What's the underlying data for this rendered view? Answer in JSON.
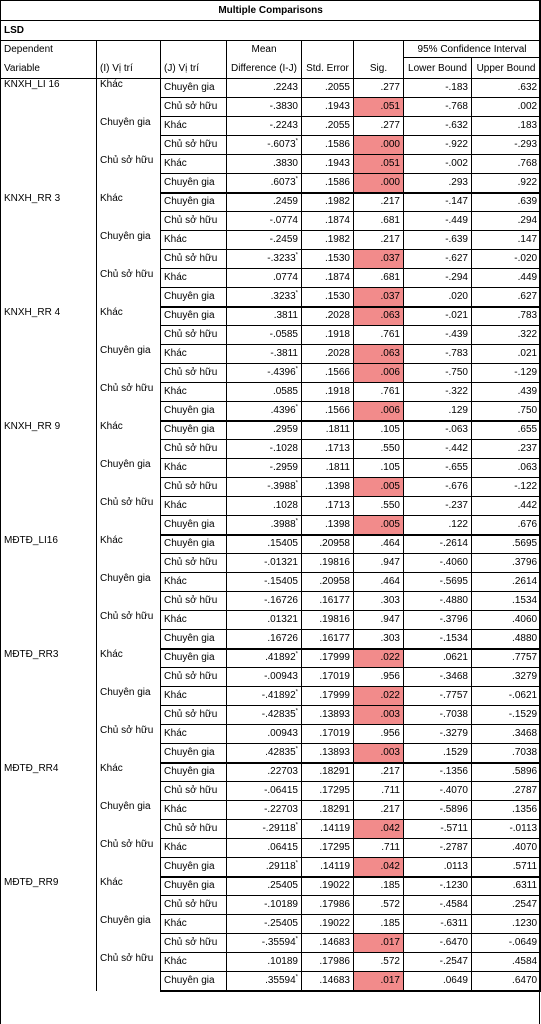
{
  "table": {
    "title": "Multiple Comparisons",
    "method": "LSD",
    "headers": {
      "dependent_line1": "Dependent",
      "dependent_line2": "Variable",
      "i_group": "(I) Vị trí",
      "j_group": "(J) Vị trí",
      "mean_diff_line1": "Mean",
      "mean_diff_line2": "Difference (I-J)",
      "std_error": "Std. Error",
      "sig": "Sig.",
      "ci": "95% Confidence Interval",
      "lower": "Lower Bound",
      "upper": "Upper Bound"
    },
    "blocks": [
      {
        "dependent": "KNXH_LI 16",
        "groups": [
          {
            "i": "Khác",
            "rows": [
              {
                "j": "Chuyên gia",
                "md": ".2243",
                "star": false,
                "se": ".2055",
                "sig": ".277",
                "hi": false,
                "lb": "-.183",
                "ub": ".632"
              },
              {
                "j": "Chủ sở hữu",
                "md": "-.3830",
                "star": false,
                "se": ".1943",
                "sig": ".051",
                "hi": true,
                "lb": "-.768",
                "ub": ".002"
              }
            ]
          },
          {
            "i": "Chuyên gia",
            "rows": [
              {
                "j": "Khác",
                "md": "-.2243",
                "star": false,
                "se": ".2055",
                "sig": ".277",
                "hi": false,
                "lb": "-.632",
                "ub": ".183"
              },
              {
                "j": "Chủ sở hữu",
                "md": "-.6073",
                "star": true,
                "se": ".1586",
                "sig": ".000",
                "hi": true,
                "lb": "-.922",
                "ub": "-.293"
              }
            ]
          },
          {
            "i": "Chủ sở hữu",
            "rows": [
              {
                "j": "Khác",
                "md": ".3830",
                "star": false,
                "se": ".1943",
                "sig": ".051",
                "hi": true,
                "lb": "-.002",
                "ub": ".768"
              },
              {
                "j": "Chuyên gia",
                "md": ".6073",
                "star": true,
                "se": ".1586",
                "sig": ".000",
                "hi": true,
                "lb": ".293",
                "ub": ".922"
              }
            ]
          }
        ]
      },
      {
        "dependent": "KNXH_RR 3",
        "groups": [
          {
            "i": "Khác",
            "rows": [
              {
                "j": "Chuyên gia",
                "md": ".2459",
                "star": false,
                "se": ".1982",
                "sig": ".217",
                "hi": false,
                "lb": "-.147",
                "ub": ".639"
              },
              {
                "j": "Chủ sở hữu",
                "md": "-.0774",
                "star": false,
                "se": ".1874",
                "sig": ".681",
                "hi": false,
                "lb": "-.449",
                "ub": ".294"
              }
            ]
          },
          {
            "i": "Chuyên gia",
            "rows": [
              {
                "j": "Khác",
                "md": "-.2459",
                "star": false,
                "se": ".1982",
                "sig": ".217",
                "hi": false,
                "lb": "-.639",
                "ub": ".147"
              },
              {
                "j": "Chủ sở hữu",
                "md": "-.3233",
                "star": true,
                "se": ".1530",
                "sig": ".037",
                "hi": true,
                "lb": "-.627",
                "ub": "-.020"
              }
            ]
          },
          {
            "i": "Chủ sở hữu",
            "rows": [
              {
                "j": "Khác",
                "md": ".0774",
                "star": false,
                "se": ".1874",
                "sig": ".681",
                "hi": false,
                "lb": "-.294",
                "ub": ".449"
              },
              {
                "j": "Chuyên gia",
                "md": ".3233",
                "star": true,
                "se": ".1530",
                "sig": ".037",
                "hi": true,
                "lb": ".020",
                "ub": ".627"
              }
            ]
          }
        ]
      },
      {
        "dependent": "KNXH_RR 4",
        "groups": [
          {
            "i": "Khác",
            "rows": [
              {
                "j": "Chuyên gia",
                "md": ".3811",
                "star": false,
                "se": ".2028",
                "sig": ".063",
                "hi": true,
                "lb": "-.021",
                "ub": ".783"
              },
              {
                "j": "Chủ sở hữu",
                "md": "-.0585",
                "star": false,
                "se": ".1918",
                "sig": ".761",
                "hi": false,
                "lb": "-.439",
                "ub": ".322"
              }
            ]
          },
          {
            "i": "Chuyên gia",
            "rows": [
              {
                "j": "Khác",
                "md": "-.3811",
                "star": false,
                "se": ".2028",
                "sig": ".063",
                "hi": true,
                "lb": "-.783",
                "ub": ".021"
              },
              {
                "j": "Chủ sở hữu",
                "md": "-.4396",
                "star": true,
                "se": ".1566",
                "sig": ".006",
                "hi": true,
                "lb": "-.750",
                "ub": "-.129"
              }
            ]
          },
          {
            "i": "Chủ sở hữu",
            "rows": [
              {
                "j": "Khác",
                "md": ".0585",
                "star": false,
                "se": ".1918",
                "sig": ".761",
                "hi": false,
                "lb": "-.322",
                "ub": ".439"
              },
              {
                "j": "Chuyên gia",
                "md": ".4396",
                "star": true,
                "se": ".1566",
                "sig": ".006",
                "hi": true,
                "lb": ".129",
                "ub": ".750"
              }
            ]
          }
        ]
      },
      {
        "dependent": "KNXH_RR 9",
        "groups": [
          {
            "i": "Khác",
            "rows": [
              {
                "j": "Chuyên gia",
                "md": ".2959",
                "star": false,
                "se": ".1811",
                "sig": ".105",
                "hi": false,
                "lb": "-.063",
                "ub": ".655"
              },
              {
                "j": "Chủ sở hữu",
                "md": "-.1028",
                "star": false,
                "se": ".1713",
                "sig": ".550",
                "hi": false,
                "lb": "-.442",
                "ub": ".237"
              }
            ]
          },
          {
            "i": "Chuyên gia",
            "rows": [
              {
                "j": "Khác",
                "md": "-.2959",
                "star": false,
                "se": ".1811",
                "sig": ".105",
                "hi": false,
                "lb": "-.655",
                "ub": ".063"
              },
              {
                "j": "Chủ sở hữu",
                "md": "-.3988",
                "star": true,
                "se": ".1398",
                "sig": ".005",
                "hi": true,
                "lb": "-.676",
                "ub": "-.122"
              }
            ]
          },
          {
            "i": "Chủ sở hữu",
            "rows": [
              {
                "j": "Khác",
                "md": ".1028",
                "star": false,
                "se": ".1713",
                "sig": ".550",
                "hi": false,
                "lb": "-.237",
                "ub": ".442"
              },
              {
                "j": "Chuyên gia",
                "md": ".3988",
                "star": true,
                "se": ".1398",
                "sig": ".005",
                "hi": true,
                "lb": ".122",
                "ub": ".676"
              }
            ]
          }
        ]
      },
      {
        "dependent": "MĐTĐ_LI16",
        "groups": [
          {
            "i": "Khác",
            "rows": [
              {
                "j": "Chuyên gia",
                "md": ".15405",
                "star": false,
                "se": ".20958",
                "sig": ".464",
                "hi": false,
                "lb": "-.2614",
                "ub": ".5695"
              },
              {
                "j": "Chủ sở hữu",
                "md": "-.01321",
                "star": false,
                "se": ".19816",
                "sig": ".947",
                "hi": false,
                "lb": "-.4060",
                "ub": ".3796"
              }
            ]
          },
          {
            "i": "Chuyên gia",
            "rows": [
              {
                "j": "Khác",
                "md": "-.15405",
                "star": false,
                "se": ".20958",
                "sig": ".464",
                "hi": false,
                "lb": "-.5695",
                "ub": ".2614"
              },
              {
                "j": "Chủ sở hữu",
                "md": "-.16726",
                "star": false,
                "se": ".16177",
                "sig": ".303",
                "hi": false,
                "lb": "-.4880",
                "ub": ".1534"
              }
            ]
          },
          {
            "i": "Chủ sở hữu",
            "rows": [
              {
                "j": "Khác",
                "md": ".01321",
                "star": false,
                "se": ".19816",
                "sig": ".947",
                "hi": false,
                "lb": "-.3796",
                "ub": ".4060"
              },
              {
                "j": "Chuyên gia",
                "md": ".16726",
                "star": false,
                "se": ".16177",
                "sig": ".303",
                "hi": false,
                "lb": "-.1534",
                "ub": ".4880"
              }
            ]
          }
        ]
      },
      {
        "dependent": "MĐTĐ_RR3",
        "groups": [
          {
            "i": "Khác",
            "rows": [
              {
                "j": "Chuyên gia",
                "md": ".41892",
                "star": true,
                "se": ".17999",
                "sig": ".022",
                "hi": true,
                "lb": ".0621",
                "ub": ".7757"
              },
              {
                "j": "Chủ sở hữu",
                "md": "-.00943",
                "star": false,
                "se": ".17019",
                "sig": ".956",
                "hi": false,
                "lb": "-.3468",
                "ub": ".3279"
              }
            ]
          },
          {
            "i": "Chuyên gia",
            "rows": [
              {
                "j": "Khác",
                "md": "-.41892",
                "star": true,
                "se": ".17999",
                "sig": ".022",
                "hi": true,
                "lb": "-.7757",
                "ub": "-.0621"
              },
              {
                "j": "Chủ sở hữu",
                "md": "-.42835",
                "star": true,
                "se": ".13893",
                "sig": ".003",
                "hi": true,
                "lb": "-.7038",
                "ub": "-.1529"
              }
            ]
          },
          {
            "i": "Chủ sở hữu",
            "rows": [
              {
                "j": "Khác",
                "md": ".00943",
                "star": false,
                "se": ".17019",
                "sig": ".956",
                "hi": false,
                "lb": "-.3279",
                "ub": ".3468"
              },
              {
                "j": "Chuyên gia",
                "md": ".42835",
                "star": true,
                "se": ".13893",
                "sig": ".003",
                "hi": true,
                "lb": ".1529",
                "ub": ".7038"
              }
            ]
          }
        ]
      },
      {
        "dependent": "MĐTĐ_RR4",
        "groups": [
          {
            "i": "Khác",
            "rows": [
              {
                "j": "Chuyên gia",
                "md": ".22703",
                "star": false,
                "se": ".18291",
                "sig": ".217",
                "hi": false,
                "lb": "-.1356",
                "ub": ".5896"
              },
              {
                "j": "Chủ sở hữu",
                "md": "-.06415",
                "star": false,
                "se": ".17295",
                "sig": ".711",
                "hi": false,
                "lb": "-.4070",
                "ub": ".2787"
              }
            ]
          },
          {
            "i": "Chuyên gia",
            "rows": [
              {
                "j": "Khác",
                "md": "-.22703",
                "star": false,
                "se": ".18291",
                "sig": ".217",
                "hi": false,
                "lb": "-.5896",
                "ub": ".1356"
              },
              {
                "j": "Chủ sở hữu",
                "md": "-.29118",
                "star": true,
                "se": ".14119",
                "sig": ".042",
                "hi": true,
                "lb": "-.5711",
                "ub": "-.0113"
              }
            ]
          },
          {
            "i": "Chủ sở hữu",
            "rows": [
              {
                "j": "Khác",
                "md": ".06415",
                "star": false,
                "se": ".17295",
                "sig": ".711",
                "hi": false,
                "lb": "-.2787",
                "ub": ".4070"
              },
              {
                "j": "Chuyên gia",
                "md": ".29118",
                "star": true,
                "se": ".14119",
                "sig": ".042",
                "hi": true,
                "lb": ".0113",
                "ub": ".5711"
              }
            ]
          }
        ]
      },
      {
        "dependent": "MĐTĐ_RR9",
        "groups": [
          {
            "i": "Khác",
            "rows": [
              {
                "j": "Chuyên gia",
                "md": ".25405",
                "star": false,
                "se": ".19022",
                "sig": ".185",
                "hi": false,
                "lb": "-.1230",
                "ub": ".6311"
              },
              {
                "j": "Chủ sở hữu",
                "md": "-.10189",
                "star": false,
                "se": ".17986",
                "sig": ".572",
                "hi": false,
                "lb": "-.4584",
                "ub": ".2547"
              }
            ]
          },
          {
            "i": "Chuyên gia",
            "rows": [
              {
                "j": "Khác",
                "md": "-.25405",
                "star": false,
                "se": ".19022",
                "sig": ".185",
                "hi": false,
                "lb": "-.6311",
                "ub": ".1230"
              },
              {
                "j": "Chủ sở hữu",
                "md": "-.35594",
                "star": true,
                "se": ".14683",
                "sig": ".017",
                "hi": true,
                "lb": "-.6470",
                "ub": "-.0649"
              }
            ]
          },
          {
            "i": "Chủ sở hữu",
            "rows": [
              {
                "j": "Khác",
                "md": ".10189",
                "star": false,
                "se": ".17986",
                "sig": ".572",
                "hi": false,
                "lb": "-.2547",
                "ub": ".4584"
              },
              {
                "j": "Chuyên gia",
                "md": ".35594",
                "star": true,
                "se": ".14683",
                "sig": ".017",
                "hi": true,
                "lb": ".0649",
                "ub": ".6470"
              }
            ]
          }
        ]
      }
    ],
    "star_mark": "*",
    "highlight_color": "#f28b8b"
  }
}
